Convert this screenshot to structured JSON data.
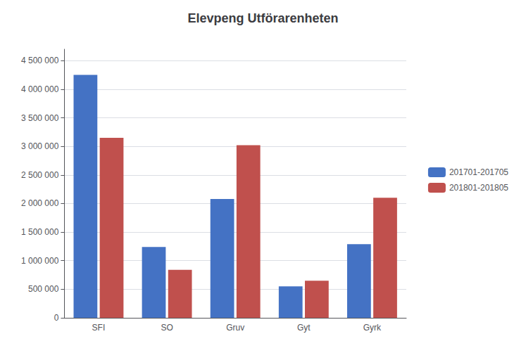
{
  "chart_data": {
    "type": "bar",
    "title": "Elevpeng Utförarenheten",
    "categories": [
      "SFI",
      "SO",
      "Gruv",
      "Gyt",
      "Gyrk"
    ],
    "series": [
      {
        "name": "201701-201705",
        "color": "#4472C4",
        "values": [
          4250000,
          1240000,
          2080000,
          550000,
          1290000
        ]
      },
      {
        "name": "201801-201805",
        "color": "#C0504D",
        "values": [
          3150000,
          840000,
          3020000,
          650000,
          2100000
        ]
      }
    ],
    "ylim": [
      0,
      4700000
    ],
    "yticks": [
      0,
      {
        "value": 500000,
        "label": "500 000"
      },
      {
        "value": 1000000,
        "label": "1 000 000"
      },
      {
        "value": 1500000,
        "label": "1 500 000"
      },
      {
        "value": 2000000,
        "label": "2 000 000"
      },
      {
        "value": 2500000,
        "label": "2 500 000"
      },
      {
        "value": 3000000,
        "label": "3 000 000"
      },
      {
        "value": 3500000,
        "label": "3 500 000"
      },
      {
        "value": 4000000,
        "label": "4 000 000"
      },
      {
        "value": 4500000,
        "label": "4 500 000"
      }
    ],
    "grid": true,
    "legend": "right"
  }
}
